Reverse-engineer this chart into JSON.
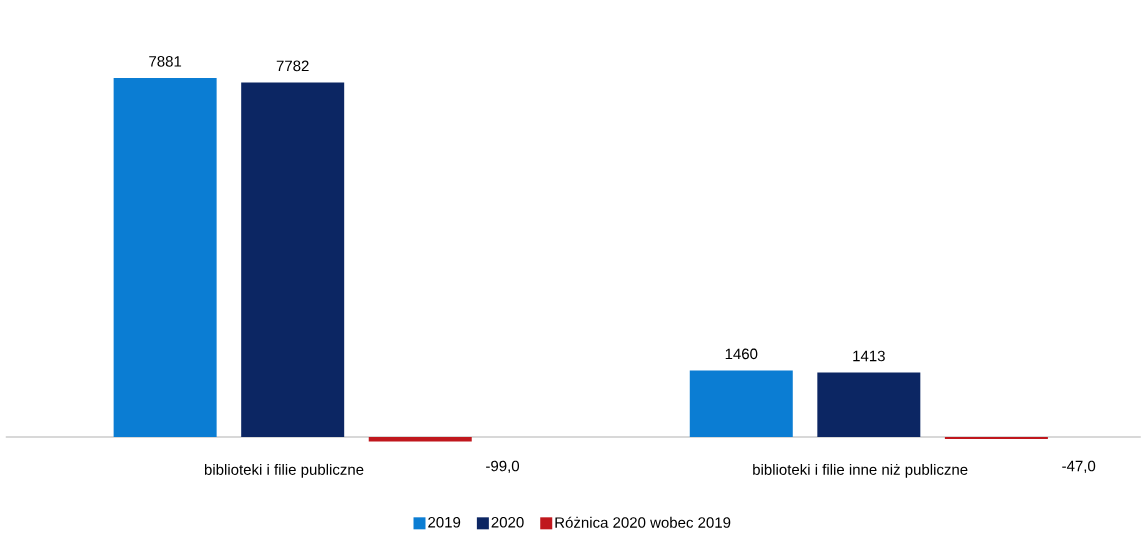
{
  "chart_data": {
    "type": "bar",
    "categories": [
      "biblioteki i filie publiczne",
      "biblioteki i filie inne niż publiczne"
    ],
    "series": [
      {
        "name": "2019",
        "color": "#0b7dd3",
        "values": [
          7881,
          1460
        ],
        "value_labels": [
          "7881",
          "1460"
        ]
      },
      {
        "name": "2020",
        "color": "#0c2663",
        "values": [
          7782,
          1413
        ],
        "value_labels": [
          "7782",
          "1413"
        ]
      },
      {
        "name": "Różnica 2020 wobec 2019",
        "color": "#c0171d",
        "values": [
          -99.0,
          -47.0
        ],
        "value_labels": [
          "-99,0",
          "-47,0"
        ]
      }
    ],
    "legend": "bottom"
  }
}
